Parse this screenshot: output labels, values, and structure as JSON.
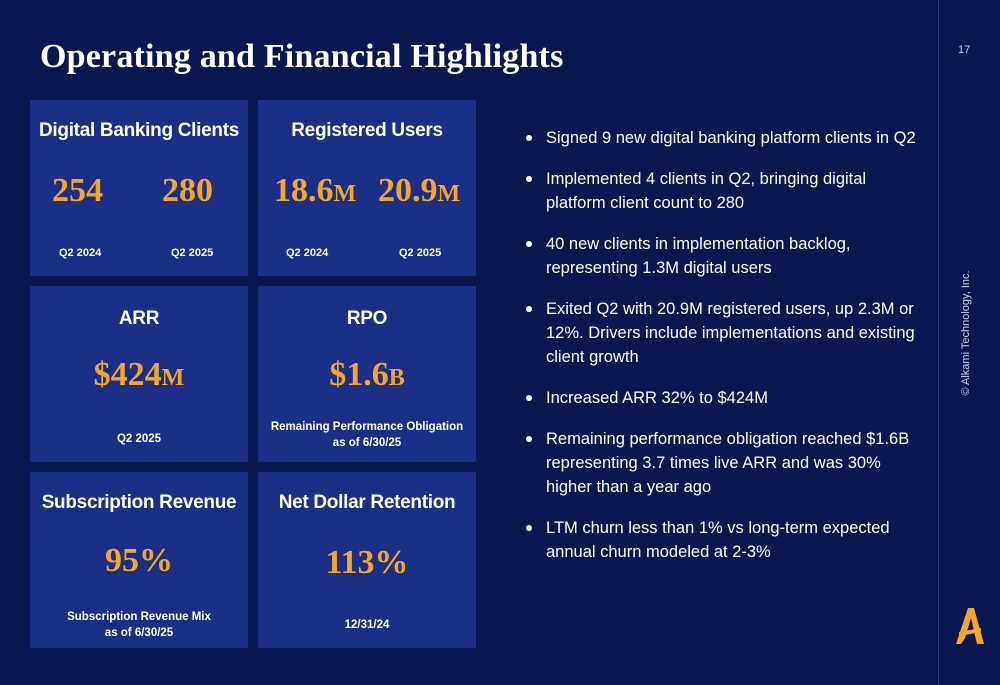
{
  "title": "Operating and Financial Highlights",
  "page_number": "17",
  "copyright": "© Alkami Technology, Inc.",
  "cards": {
    "digital_banking": {
      "title": "Digital Banking Clients",
      "values": [
        {
          "number": "254",
          "unit": "",
          "label": "Q2 2024"
        },
        {
          "number": "280",
          "unit": "",
          "label": "Q2 2025"
        }
      ]
    },
    "registered_users": {
      "title": "Registered Users",
      "values": [
        {
          "number": "18.6",
          "unit": "M",
          "label": "Q2 2024"
        },
        {
          "number": "20.9",
          "unit": "M",
          "label": "Q2 2025"
        }
      ]
    },
    "arr": {
      "title": "ARR",
      "number": "$424",
      "unit": "M",
      "note": "Q2 2025"
    },
    "rpo": {
      "title": "RPO",
      "number": "$1.6",
      "unit": "B",
      "note_line1": "Remaining Performance Obligation",
      "note_line2": "as of 6/30/25"
    },
    "subscription": {
      "title": "Subscription Revenue",
      "number": "95%",
      "note_line1": "Subscription Revenue Mix",
      "note_line2": "as of 6/30/25"
    },
    "ndr": {
      "title": "Net Dollar Retention",
      "number": "113%",
      "note": "12/31/24"
    }
  },
  "bullets": [
    "Signed 9 new digital banking platform clients in Q2",
    "Implemented 4 clients in Q2, bringing digital platform client count to 280",
    "40 new clients in implementation backlog, representing 1.3M digital users",
    "Exited Q2 with 20.9M registered users, up 2.3M or 12%. Drivers include implementations and existing client growth",
    "Increased ARR 32% to $424M",
    "Remaining performance obligation reached $1.6B representing 3.7 times live ARR and was 30% higher than a year ago",
    "LTM churn less than 1% vs long-term expected annual churn modeled at 2-3%"
  ],
  "colors": {
    "background": "#0b1750",
    "card": "#1a2f85",
    "accent": "#f4a52b"
  }
}
